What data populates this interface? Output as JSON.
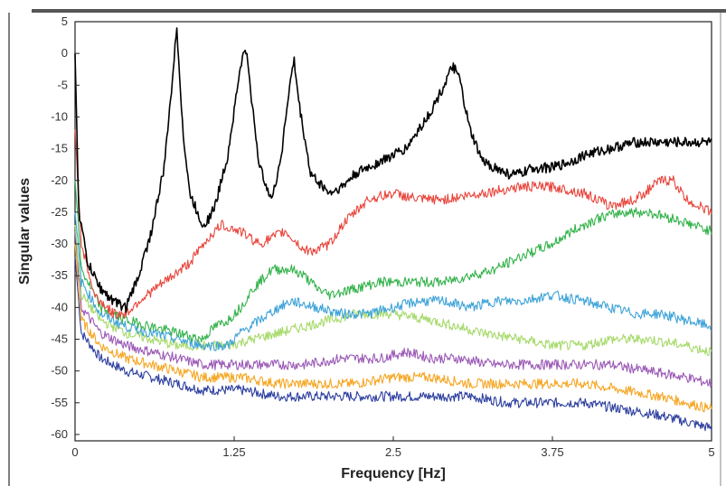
{
  "chart_data": {
    "type": "line",
    "title": "",
    "xlabel": "Frequency [Hz]",
    "ylabel": "Singular values",
    "xlim": [
      0,
      5
    ],
    "ylim": [
      -61,
      5
    ],
    "xticks": [
      0,
      1.25,
      2.5,
      3.75,
      5
    ],
    "xtick_labels": [
      "0",
      "1.25",
      "2.5",
      "3.75",
      "5"
    ],
    "yticks": [
      5,
      0,
      -5,
      -10,
      -15,
      -20,
      -25,
      -30,
      -35,
      -40,
      -45,
      -50,
      -55,
      -60
    ],
    "ytick_labels": [
      "5",
      "0",
      "-5",
      "-10",
      "-15",
      "-20",
      "-25",
      "-30",
      "-35",
      "-40",
      "-45",
      "-50",
      "-55",
      "-60"
    ],
    "grid": false,
    "legend": "none",
    "series": [
      {
        "color": "#000000",
        "x": [
          0,
          0.03,
          0.1,
          0.2,
          0.3,
          0.4,
          0.5,
          0.6,
          0.7,
          0.76,
          0.8,
          0.85,
          0.9,
          1.0,
          1.05,
          1.1,
          1.2,
          1.3,
          1.34,
          1.38,
          1.45,
          1.55,
          1.62,
          1.68,
          1.72,
          1.76,
          1.85,
          2.0,
          2.1,
          2.2,
          2.3,
          2.4,
          2.5,
          2.6,
          2.7,
          2.8,
          2.9,
          2.97,
          3.02,
          3.1,
          3.2,
          3.3,
          3.4,
          3.5,
          3.6,
          3.75,
          3.9,
          4.0,
          4.2,
          4.4,
          4.6,
          4.8,
          5.0
        ],
        "y": [
          0,
          -25,
          -33,
          -37,
          -39,
          -40,
          -35,
          -28,
          -18,
          -5,
          4,
          -13,
          -22,
          -27,
          -26,
          -24,
          -16,
          -2,
          1,
          -6,
          -18,
          -23,
          -16,
          -6,
          -1,
          -8,
          -19,
          -22,
          -21,
          -19,
          -18,
          -17,
          -16,
          -15,
          -12,
          -9,
          -5,
          -2,
          -4,
          -12,
          -17,
          -18,
          -19,
          -19,
          -18,
          -18,
          -17,
          -16,
          -15,
          -14,
          -14,
          -14,
          -14
        ]
      },
      {
        "color": "#e8443a",
        "x": [
          0,
          0.05,
          0.15,
          0.3,
          0.4,
          0.5,
          0.7,
          0.9,
          1.05,
          1.15,
          1.3,
          1.45,
          1.55,
          1.65,
          1.8,
          1.9,
          2.0,
          2.1,
          2.2,
          2.3,
          2.5,
          2.7,
          2.9,
          3.2,
          3.5,
          3.75,
          4.0,
          4.2,
          4.4,
          4.6,
          4.7,
          4.8,
          5.0
        ],
        "y": [
          -12,
          -30,
          -38,
          -41,
          -41,
          -39,
          -36,
          -33,
          -29,
          -27,
          -28,
          -30,
          -29,
          -28,
          -31,
          -31,
          -30,
          -27,
          -25,
          -23,
          -22,
          -23,
          -23,
          -22,
          -21,
          -21,
          -22,
          -24,
          -23,
          -20,
          -20,
          -23,
          -25
        ]
      },
      {
        "color": "#33b24a",
        "x": [
          0,
          0.05,
          0.2,
          0.4,
          0.6,
          0.8,
          1.0,
          1.1,
          1.2,
          1.3,
          1.4,
          1.55,
          1.7,
          1.8,
          1.9,
          2.0,
          2.2,
          2.4,
          2.5,
          2.7,
          2.9,
          3.1,
          3.3,
          3.5,
          3.75,
          3.9,
          4.1,
          4.3,
          4.5,
          4.7,
          4.85,
          5.0
        ],
        "y": [
          -20,
          -34,
          -40,
          -42,
          -43,
          -44,
          -45,
          -43,
          -42,
          -40,
          -37,
          -34,
          -34,
          -35,
          -37,
          -38,
          -37,
          -36,
          -36,
          -36,
          -36,
          -35,
          -34,
          -32,
          -30,
          -28,
          -26,
          -25,
          -25,
          -26,
          -27,
          -28
        ]
      },
      {
        "color": "#3ea3d8",
        "x": [
          0,
          0.05,
          0.2,
          0.4,
          0.6,
          0.8,
          1.0,
          1.2,
          1.3,
          1.45,
          1.6,
          1.7,
          1.9,
          2.1,
          2.3,
          2.5,
          2.7,
          2.9,
          3.1,
          3.3,
          3.5,
          3.75,
          4.0,
          4.2,
          4.4,
          4.6,
          4.8,
          5.0
        ],
        "y": [
          -25,
          -36,
          -41,
          -43,
          -44,
          -45,
          -46,
          -46,
          -44,
          -42,
          -40,
          -39,
          -40,
          -41,
          -41,
          -40,
          -39,
          -39,
          -40,
          -39,
          -39,
          -38,
          -39,
          -40,
          -41,
          -41,
          -42,
          -43
        ]
      },
      {
        "color": "#a6d96a",
        "x": [
          0,
          0.05,
          0.2,
          0.4,
          0.6,
          0.8,
          1.0,
          1.2,
          1.4,
          1.6,
          1.8,
          2.0,
          2.2,
          2.5,
          2.8,
          3.0,
          3.2,
          3.5,
          3.75,
          4.0,
          4.2,
          4.5,
          4.8,
          5.0
        ],
        "y": [
          -27,
          -38,
          -42,
          -44,
          -45,
          -46,
          -46,
          -46,
          -45,
          -44,
          -43,
          -42,
          -41,
          -41,
          -42,
          -43,
          -44,
          -45,
          -46,
          -46,
          -45,
          -45,
          -46,
          -47
        ]
      },
      {
        "color": "#9b59b6",
        "x": [
          0,
          0.05,
          0.2,
          0.4,
          0.6,
          0.8,
          1.0,
          1.2,
          1.5,
          1.8,
          2.1,
          2.4,
          2.6,
          2.8,
          3.0,
          3.3,
          3.6,
          3.9,
          4.2,
          4.5,
          4.8,
          5.0
        ],
        "y": [
          -28,
          -40,
          -44,
          -46,
          -47,
          -48,
          -49,
          -49,
          -49,
          -49,
          -48,
          -48,
          -47,
          -48,
          -48,
          -49,
          -49,
          -49,
          -49,
          -50,
          -51,
          -52
        ]
      },
      {
        "color": "#f5a623",
        "x": [
          0,
          0.05,
          0.2,
          0.4,
          0.6,
          0.8,
          1.0,
          1.3,
          1.6,
          1.9,
          2.2,
          2.5,
          2.8,
          3.1,
          3.4,
          3.7,
          4.0,
          4.3,
          4.6,
          4.8,
          5.0
        ],
        "y": [
          -30,
          -42,
          -46,
          -48,
          -49,
          -50,
          -51,
          -51,
          -52,
          -52,
          -52,
          -51,
          -51,
          -52,
          -52,
          -52,
          -52,
          -53,
          -54,
          -55,
          -56
        ]
      },
      {
        "color": "#2c3e9e",
        "x": [
          0,
          0.05,
          0.2,
          0.4,
          0.6,
          0.8,
          1.0,
          1.3,
          1.6,
          1.9,
          2.2,
          2.5,
          2.8,
          3.1,
          3.4,
          3.7,
          4.0,
          4.3,
          4.6,
          4.8,
          5.0
        ],
        "y": [
          -32,
          -44,
          -48,
          -50,
          -51,
          -52,
          -53,
          -53,
          -54,
          -54,
          -54,
          -54,
          -54,
          -54,
          -55,
          -55,
          -55,
          -56,
          -57,
          -58,
          -59
        ]
      }
    ]
  }
}
